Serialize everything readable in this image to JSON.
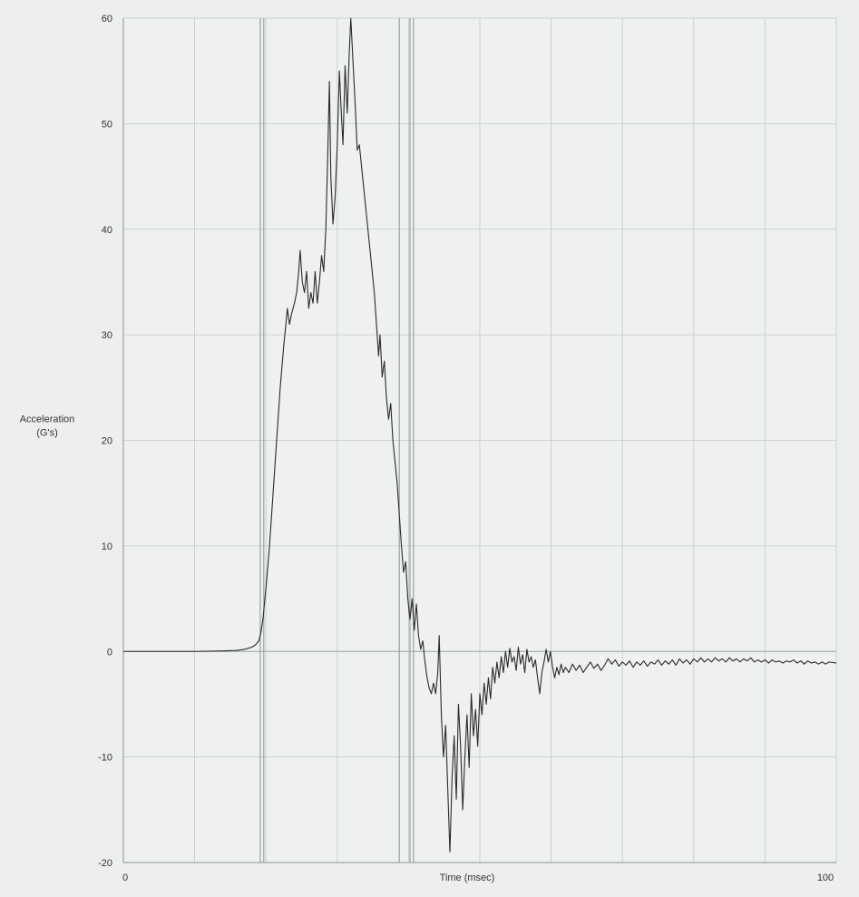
{
  "chart_data": {
    "type": "line",
    "title": "",
    "xlabel": "Time (msec)",
    "ylabel_line1": "Acceleration",
    "ylabel_line2": "(G's)",
    "xlim": [
      0,
      100
    ],
    "ylim": [
      -20,
      60
    ],
    "x_tick_labels": [
      {
        "x": 0,
        "label": "0"
      },
      {
        "x": 100,
        "label": "100"
      }
    ],
    "y_ticks": [
      -20,
      -10,
      0,
      10,
      20,
      30,
      40,
      50,
      60
    ],
    "x_gridlines": [
      10,
      20,
      30,
      40,
      50,
      60,
      70,
      80,
      90
    ],
    "event_markers_x": [
      19.2,
      19.7,
      38.7,
      40.2,
      40.7
    ],
    "grid": true,
    "series": [
      {
        "points": [
          [
            0,
            0
          ],
          [
            5,
            0
          ],
          [
            10,
            0
          ],
          [
            14,
            0.05
          ],
          [
            16,
            0.1
          ],
          [
            17,
            0.2
          ],
          [
            18,
            0.4
          ],
          [
            18.5,
            0.6
          ],
          [
            19,
            1.0
          ],
          [
            19.3,
            1.8
          ],
          [
            19.6,
            3.2
          ],
          [
            20,
            6
          ],
          [
            20.5,
            10
          ],
          [
            21,
            15
          ],
          [
            21.5,
            20
          ],
          [
            22,
            25
          ],
          [
            22.5,
            29
          ],
          [
            22.8,
            31
          ],
          [
            23,
            32.5
          ],
          [
            23.3,
            31
          ],
          [
            23.6,
            32
          ],
          [
            24,
            33
          ],
          [
            24.3,
            34
          ],
          [
            24.6,
            36
          ],
          [
            24.8,
            38
          ],
          [
            25.1,
            35
          ],
          [
            25.4,
            34
          ],
          [
            25.7,
            36
          ],
          [
            26,
            32.5
          ],
          [
            26.3,
            34
          ],
          [
            26.6,
            33
          ],
          [
            26.9,
            36
          ],
          [
            27.2,
            33
          ],
          [
            27.5,
            35
          ],
          [
            27.8,
            37.5
          ],
          [
            28.1,
            36
          ],
          [
            28.4,
            40
          ],
          [
            28.7,
            48
          ],
          [
            28.9,
            54
          ],
          [
            29.1,
            45
          ],
          [
            29.4,
            40.5
          ],
          [
            29.7,
            43
          ],
          [
            30,
            48
          ],
          [
            30.3,
            55
          ],
          [
            30.5,
            52
          ],
          [
            30.8,
            48
          ],
          [
            31.1,
            55.5
          ],
          [
            31.4,
            51
          ],
          [
            31.7,
            57
          ],
          [
            31.9,
            60
          ],
          [
            32.2,
            56
          ],
          [
            32.5,
            52
          ],
          [
            32.8,
            47.5
          ],
          [
            33.1,
            48
          ],
          [
            33.4,
            46
          ],
          [
            33.7,
            44
          ],
          [
            34,
            42
          ],
          [
            34.3,
            40
          ],
          [
            34.6,
            38
          ],
          [
            34.9,
            36
          ],
          [
            35.2,
            34
          ],
          [
            35.5,
            31
          ],
          [
            35.8,
            28
          ],
          [
            36,
            30
          ],
          [
            36.3,
            26
          ],
          [
            36.6,
            27.5
          ],
          [
            36.9,
            24
          ],
          [
            37.2,
            22
          ],
          [
            37.5,
            23.5
          ],
          [
            37.8,
            20
          ],
          [
            38.1,
            18
          ],
          [
            38.4,
            16
          ],
          [
            38.7,
            13
          ],
          [
            39,
            10
          ],
          [
            39.3,
            7.5
          ],
          [
            39.6,
            8.5
          ],
          [
            39.9,
            5
          ],
          [
            40.2,
            3
          ],
          [
            40.5,
            5
          ],
          [
            40.8,
            2
          ],
          [
            41.1,
            4.5
          ],
          [
            41.4,
            1.5
          ],
          [
            41.7,
            0.2
          ],
          [
            42,
            1
          ],
          [
            42.3,
            -1
          ],
          [
            42.6,
            -2.5
          ],
          [
            42.9,
            -3.5
          ],
          [
            43.2,
            -4
          ],
          [
            43.5,
            -3
          ],
          [
            43.8,
            -4
          ],
          [
            44.1,
            -2
          ],
          [
            44.3,
            1.5
          ],
          [
            44.6,
            -6
          ],
          [
            44.9,
            -10
          ],
          [
            45.2,
            -7
          ],
          [
            45.5,
            -13
          ],
          [
            45.8,
            -19
          ],
          [
            46.1,
            -12
          ],
          [
            46.4,
            -8
          ],
          [
            46.7,
            -14
          ],
          [
            47,
            -5
          ],
          [
            47.3,
            -9
          ],
          [
            47.6,
            -15
          ],
          [
            47.9,
            -10
          ],
          [
            48.2,
            -6
          ],
          [
            48.5,
            -11
          ],
          [
            48.8,
            -4
          ],
          [
            49.1,
            -8
          ],
          [
            49.4,
            -5.5
          ],
          [
            49.7,
            -9
          ],
          [
            50,
            -4
          ],
          [
            50.3,
            -6
          ],
          [
            50.6,
            -3
          ],
          [
            50.9,
            -5
          ],
          [
            51.2,
            -2.5
          ],
          [
            51.5,
            -4.5
          ],
          [
            51.8,
            -1.5
          ],
          [
            52.1,
            -3
          ],
          [
            52.4,
            -1
          ],
          [
            52.7,
            -2.5
          ],
          [
            53,
            -0.5
          ],
          [
            53.3,
            -2
          ],
          [
            53.6,
            0
          ],
          [
            53.9,
            -1.5
          ],
          [
            54.2,
            0.3
          ],
          [
            54.5,
            -1
          ],
          [
            54.8,
            -0.5
          ],
          [
            55.1,
            -1.8
          ],
          [
            55.4,
            0.4
          ],
          [
            55.7,
            -1.2
          ],
          [
            56,
            -0.3
          ],
          [
            56.3,
            -2
          ],
          [
            56.6,
            0.2
          ],
          [
            56.9,
            -1
          ],
          [
            57.2,
            -0.5
          ],
          [
            57.5,
            -1.5
          ],
          [
            57.8,
            -0.8
          ],
          [
            58.1,
            -2.5
          ],
          [
            58.4,
            -4
          ],
          [
            58.7,
            -2
          ],
          [
            59,
            -1
          ],
          [
            59.3,
            0.2
          ],
          [
            59.6,
            -1
          ],
          [
            59.9,
            0
          ],
          [
            60.2,
            -1.5
          ],
          [
            60.5,
            -2.5
          ],
          [
            60.8,
            -1.5
          ],
          [
            61.1,
            -2.2
          ],
          [
            61.4,
            -1.2
          ],
          [
            61.7,
            -2
          ],
          [
            62,
            -1.5
          ],
          [
            62.5,
            -2
          ],
          [
            63,
            -1.2
          ],
          [
            63.5,
            -1.8
          ],
          [
            64,
            -1.3
          ],
          [
            64.5,
            -2
          ],
          [
            65,
            -1.5
          ],
          [
            65.5,
            -1
          ],
          [
            66,
            -1.6
          ],
          [
            66.5,
            -1.2
          ],
          [
            67,
            -1.8
          ],
          [
            67.5,
            -1.3
          ],
          [
            68,
            -0.7
          ],
          [
            68.5,
            -1.2
          ],
          [
            69,
            -0.8
          ],
          [
            69.5,
            -1.4
          ],
          [
            70,
            -1
          ],
          [
            70.5,
            -1.3
          ],
          [
            71,
            -0.9
          ],
          [
            71.5,
            -1.5
          ],
          [
            72,
            -1
          ],
          [
            72.5,
            -1.3
          ],
          [
            73,
            -0.9
          ],
          [
            73.5,
            -1.4
          ],
          [
            74,
            -1
          ],
          [
            74.5,
            -1.2
          ],
          [
            75,
            -0.8
          ],
          [
            75.5,
            -1.3
          ],
          [
            76,
            -0.9
          ],
          [
            76.5,
            -1.2
          ],
          [
            77,
            -0.8
          ],
          [
            77.5,
            -1.3
          ],
          [
            78,
            -0.7
          ],
          [
            78.5,
            -1.1
          ],
          [
            79,
            -0.8
          ],
          [
            79.5,
            -1.2
          ],
          [
            80,
            -0.7
          ],
          [
            80.5,
            -1
          ],
          [
            81,
            -0.6
          ],
          [
            81.5,
            -1
          ],
          [
            82,
            -0.7
          ],
          [
            82.5,
            -1
          ],
          [
            83,
            -0.6
          ],
          [
            83.5,
            -0.9
          ],
          [
            84,
            -0.7
          ],
          [
            84.5,
            -1
          ],
          [
            85,
            -0.6
          ],
          [
            85.5,
            -0.9
          ],
          [
            86,
            -0.7
          ],
          [
            86.5,
            -1
          ],
          [
            87,
            -0.7
          ],
          [
            87.5,
            -0.9
          ],
          [
            88,
            -0.6
          ],
          [
            88.5,
            -1
          ],
          [
            89,
            -0.8
          ],
          [
            89.5,
            -1
          ],
          [
            90,
            -0.8
          ],
          [
            90.5,
            -1.1
          ],
          [
            91,
            -0.8
          ],
          [
            91.5,
            -1
          ],
          [
            92,
            -0.9
          ],
          [
            92.5,
            -1.1
          ],
          [
            93,
            -0.9
          ],
          [
            93.5,
            -1
          ],
          [
            94,
            -0.8
          ],
          [
            94.5,
            -1.1
          ],
          [
            95,
            -0.9
          ],
          [
            95.5,
            -1.2
          ],
          [
            96,
            -0.9
          ],
          [
            96.5,
            -1.1
          ],
          [
            97,
            -1
          ],
          [
            97.5,
            -1.2
          ],
          [
            98,
            -1
          ],
          [
            98.5,
            -1.2
          ],
          [
            99,
            -1
          ],
          [
            100,
            -1.1
          ]
        ]
      }
    ]
  }
}
